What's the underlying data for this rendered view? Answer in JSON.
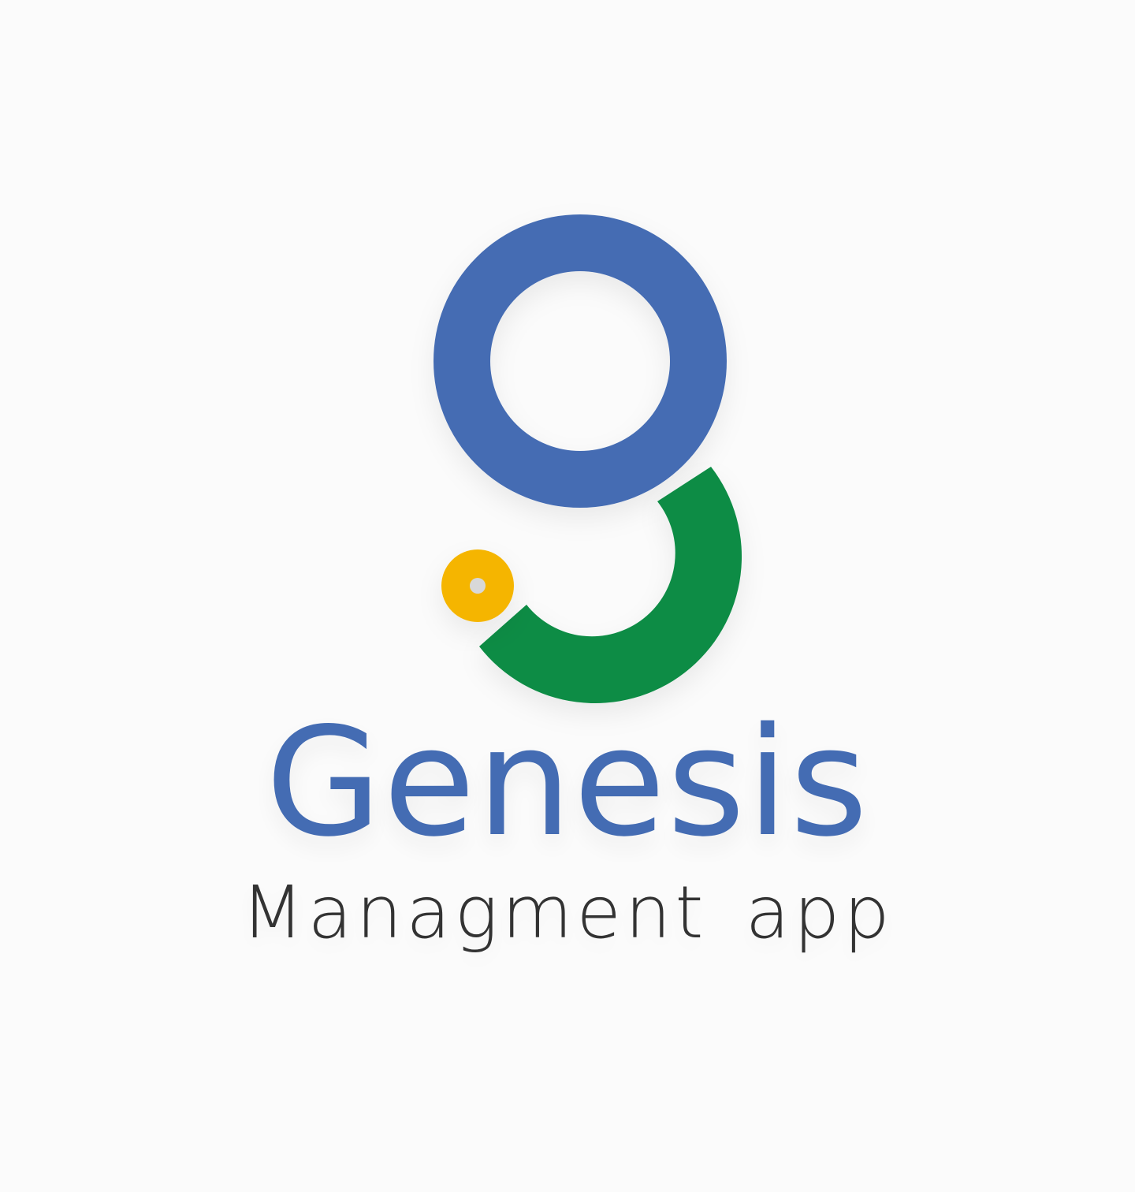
{
  "brand": {
    "title": "Genesis",
    "subtitle": "Managment app"
  },
  "icons": {
    "logo": "genesis-g-logo-icon"
  },
  "colors": {
    "background": "#fbfbfb",
    "blue": "#446cb3",
    "green": "#0a8c44",
    "yellow": "#f5b505",
    "dot_center": "#d8d8d8",
    "subtitle": "#333333"
  }
}
